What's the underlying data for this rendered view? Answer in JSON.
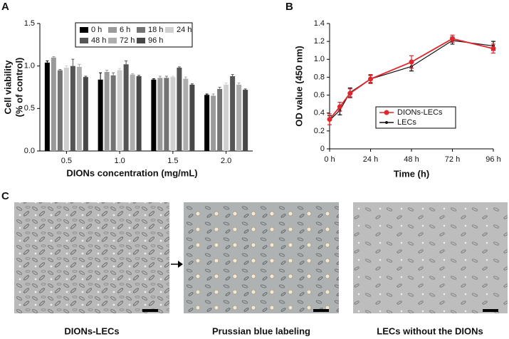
{
  "chart_data": [
    {
      "type": "bar",
      "panel": "A",
      "ylabel": [
        "Cell viability",
        "(% of control)"
      ],
      "xlabel": "DIONs concentration (mg/mL)",
      "categories": [
        "0.5",
        "1.0",
        "1.5",
        "2.0"
      ],
      "ylim": [
        0,
        1.5
      ],
      "yticks": [
        {
          "value": 0,
          "label": "0.0"
        },
        {
          "value": 0.5,
          "label": "0.5"
        },
        {
          "value": 1,
          "label": "1.0"
        },
        {
          "value": 1.5,
          "label": "1.5"
        }
      ],
      "series": [
        {
          "name": "0 h",
          "color": "#000000",
          "values": [
            1.04,
            0.84,
            0.84,
            0.66
          ],
          "errors": [
            0.02,
            0.08,
            0.01,
            0.01
          ]
        },
        {
          "name": "6 h",
          "color": "#9a9a9a",
          "values": [
            1.1,
            0.93,
            0.86,
            0.65
          ],
          "errors": [
            0.01,
            0.02,
            0.02,
            0.02
          ]
        },
        {
          "name": "18 h",
          "color": "#737373",
          "values": [
            0.95,
            0.89,
            0.86,
            0.73
          ],
          "errors": [
            0.01,
            0.03,
            0.02,
            0.02
          ]
        },
        {
          "name": "24 h",
          "color": "#cfcfcf",
          "values": [
            0.98,
            0.95,
            0.87,
            0.78
          ],
          "errors": [
            0.02,
            0.02,
            0.01,
            0.02
          ]
        },
        {
          "name": "48 h",
          "color": "#555555",
          "values": [
            1.0,
            1.02,
            0.98,
            0.88
          ],
          "errors": [
            0.08,
            0.04,
            0.01,
            0.02
          ]
        },
        {
          "name": "72 h",
          "color": "#adadad",
          "values": [
            0.99,
            0.9,
            0.85,
            0.78
          ],
          "errors": [
            0.03,
            0.01,
            0.02,
            0.02
          ]
        },
        {
          "name": "96 h",
          "color": "#474747",
          "values": [
            0.87,
            0.88,
            0.78,
            0.72
          ],
          "errors": [
            0.01,
            0.01,
            0.01,
            0.01
          ]
        }
      ]
    },
    {
      "type": "line",
      "panel": "B",
      "ylabel": "OD value (450 nm)",
      "xlabel": "Time (h)",
      "x": [
        0,
        6,
        12,
        24,
        48,
        72,
        96
      ],
      "xlim": [
        0,
        96
      ],
      "xticks": [
        {
          "value": 0,
          "label": "0 h"
        },
        {
          "value": 24,
          "label": "24 h"
        },
        {
          "value": 48,
          "label": "48 h"
        },
        {
          "value": 72,
          "label": "72 h"
        },
        {
          "value": 96,
          "label": "96 h"
        }
      ],
      "ylim": [
        0,
        1.4
      ],
      "yticks": [
        0,
        0.2,
        0.4,
        0.6,
        0.8,
        {
          "value": 1,
          "label": "1.0"
        },
        1.2,
        1.4
      ],
      "series": [
        {
          "name": "DIONs-LECs",
          "color": "#e0262c",
          "values": [
            0.33,
            0.47,
            0.62,
            0.78,
            0.97,
            1.23,
            1.12
          ],
          "errors": [
            0.06,
            0.05,
            0.05,
            0.05,
            0.07,
            0.04,
            0.05
          ]
        },
        {
          "name": "LECs",
          "color": "#111111",
          "values": [
            0.32,
            0.43,
            0.63,
            0.78,
            0.92,
            1.21,
            1.15
          ],
          "errors": [
            0.05,
            0.05,
            0.05,
            0.04,
            0.05,
            0.04,
            0.05
          ]
        }
      ]
    }
  ],
  "images": {
    "panel": "C",
    "captions": [
      "DIONs-LECs",
      "Prussian blue labeling",
      "LECs without the DIONs"
    ]
  }
}
